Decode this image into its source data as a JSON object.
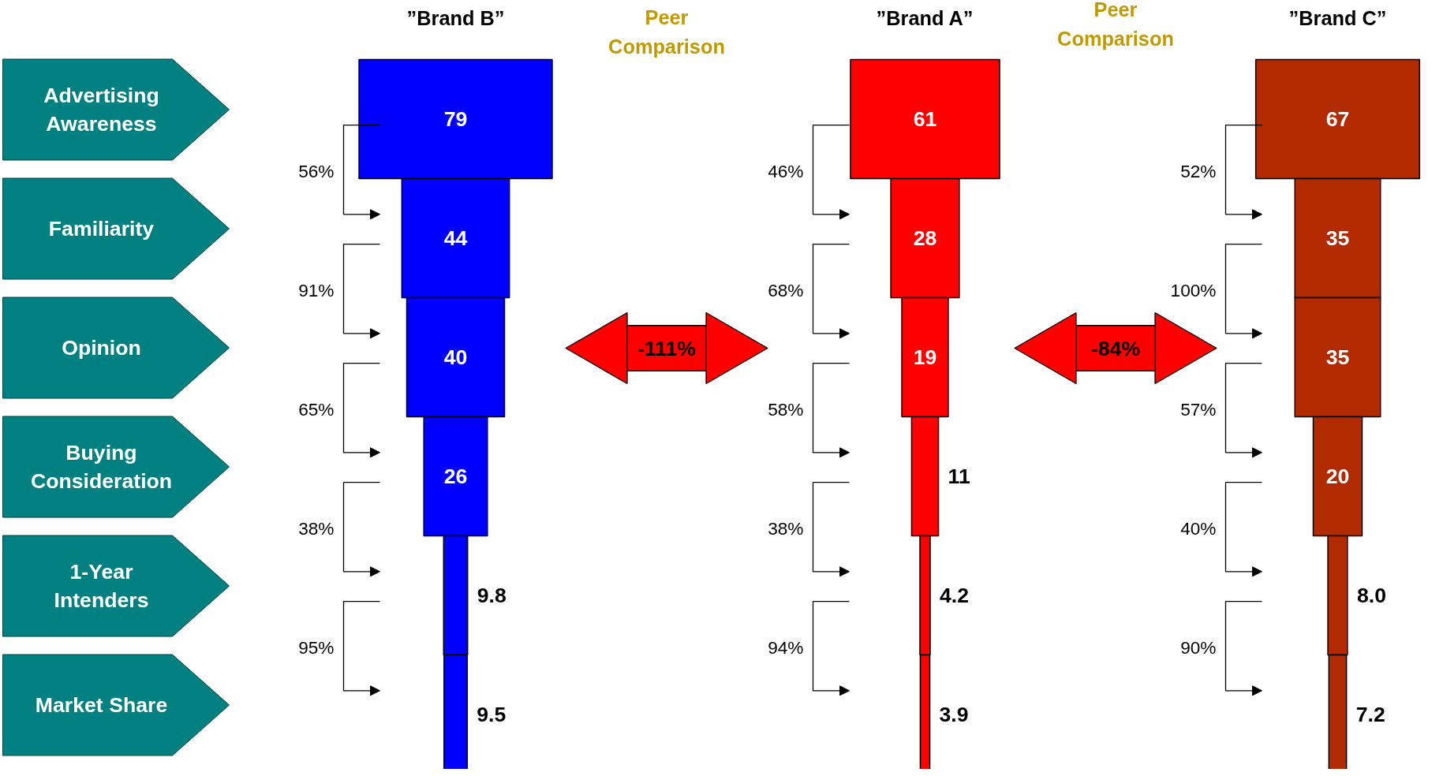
{
  "chart_data": {
    "type": "other",
    "categories": [
      "Advertising Awareness",
      "Familiarity",
      "Opinion",
      "Buying Consideration",
      "1-Year Intenders",
      "Market Share"
    ],
    "series": [
      {
        "name": "”Brand B”",
        "color": "#0000ff",
        "values": [
          79,
          44,
          40,
          26,
          9.8,
          9.5
        ],
        "value_labels": [
          "79",
          "44",
          "40",
          "26",
          "9.8",
          "9.5"
        ]
      },
      {
        "name": "”Brand A”",
        "color": "#ff0000",
        "values": [
          61,
          28,
          19,
          11,
          4.2,
          3.9
        ],
        "value_labels": [
          "61",
          "28",
          "19",
          "11",
          "4.2",
          "3.9"
        ]
      },
      {
        "name": "”Brand C”",
        "color": "#b22a00",
        "values": [
          67,
          35,
          35,
          20,
          8.0,
          7.2
        ],
        "value_labels": [
          "67",
          "35",
          "35",
          "20",
          "8.0",
          "7.2"
        ]
      }
    ],
    "annotations": [
      "56%",
      "91%",
      "65%",
      "38%",
      "95%",
      "46%",
      "68%",
      "58%",
      "38%",
      "94%",
      "52%",
      "100%",
      "57%",
      "40%",
      "90%",
      "Peer Comparison",
      "-111%",
      "Peer Comparison",
      "-84%"
    ]
  }
}
